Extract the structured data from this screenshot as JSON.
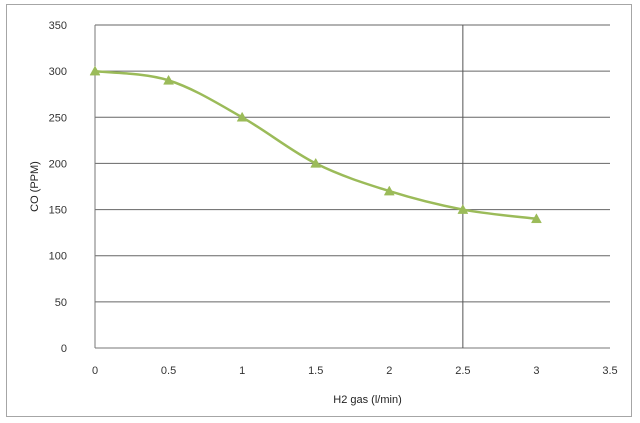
{
  "chart_data": {
    "type": "line",
    "title": "",
    "xlabel": "H2 gas (l/min)",
    "ylabel": "CO (PPM)",
    "xlim": [
      0,
      3.5
    ],
    "ylim": [
      0,
      350
    ],
    "x_ticks": [
      0,
      0.5,
      1,
      1.5,
      2,
      2.5,
      3,
      3.5
    ],
    "x_tick_labels": [
      "0",
      "0.5",
      "1",
      "1.5",
      "2",
      "2.5",
      "3",
      "3.5"
    ],
    "y_ticks": [
      0,
      50,
      100,
      150,
      200,
      250,
      300,
      350
    ],
    "y_tick_labels": [
      "0",
      "50",
      "100",
      "150",
      "200",
      "250",
      "300",
      "350"
    ],
    "grid": "major horizontal gridlines",
    "legend": "none",
    "smooth": true,
    "series": [
      {
        "x": [
          0,
          0.5,
          1,
          1.5,
          2,
          2.5,
          3
        ],
        "y": [
          300,
          290,
          250,
          200,
          170,
          150,
          140
        ],
        "color": "#9bbb59",
        "marker": "triangle"
      }
    ],
    "annotations": [
      {
        "type": "vertical-line",
        "x": 2.5,
        "color": "#555555"
      }
    ]
  }
}
